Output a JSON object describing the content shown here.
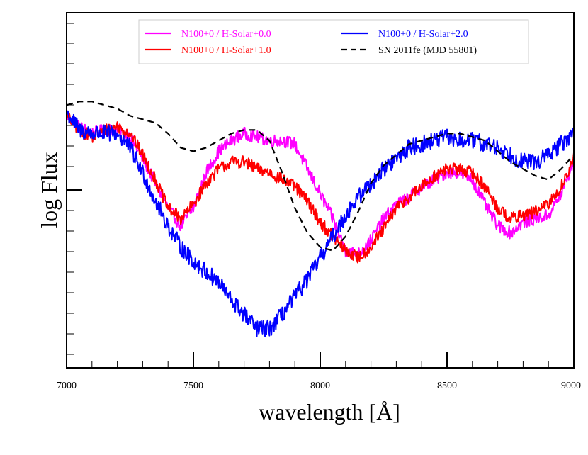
{
  "chart_data": {
    "type": "line",
    "xlabel": "wavelength [Å]",
    "ylabel": "log Flux",
    "xlim": [
      7000,
      9000
    ],
    "ylim": [
      0,
      1
    ],
    "x_ticks": [
      7000,
      7500,
      8000,
      8500,
      9000
    ],
    "x_tick_labels": [
      "7000",
      "7500",
      "8000",
      "8500",
      "9000"
    ],
    "grid": false,
    "legend_position": "top",
    "series": [
      {
        "name": "N100+0 / H-Solar+0.0",
        "color": "#ff00ff",
        "style": "solid",
        "noise": 0.008,
        "x": [
          7000,
          7050,
          7100,
          7150,
          7200,
          7250,
          7300,
          7350,
          7400,
          7450,
          7500,
          7550,
          7600,
          7650,
          7700,
          7750,
          7800,
          7850,
          7900,
          7950,
          8000,
          8050,
          8100,
          8150,
          8200,
          8250,
          8300,
          8350,
          8400,
          8450,
          8500,
          8550,
          8600,
          8650,
          8700,
          8750,
          8800,
          8850,
          8900,
          8950,
          9000
        ],
        "y": [
          0.71,
          0.68,
          0.66,
          0.67,
          0.67,
          0.65,
          0.59,
          0.52,
          0.45,
          0.4,
          0.45,
          0.55,
          0.61,
          0.64,
          0.66,
          0.65,
          0.64,
          0.64,
          0.63,
          0.56,
          0.49,
          0.42,
          0.33,
          0.32,
          0.36,
          0.42,
          0.46,
          0.48,
          0.51,
          0.53,
          0.55,
          0.55,
          0.53,
          0.46,
          0.4,
          0.38,
          0.41,
          0.42,
          0.43,
          0.49,
          0.58
        ]
      },
      {
        "name": "N100+0 / H-Solar+1.0",
        "color": "#ff0000",
        "style": "solid",
        "noise": 0.008,
        "x": [
          7000,
          7050,
          7100,
          7150,
          7200,
          7250,
          7300,
          7350,
          7400,
          7450,
          7500,
          7550,
          7600,
          7650,
          7700,
          7750,
          7800,
          7850,
          7900,
          7950,
          8000,
          8050,
          8100,
          8150,
          8200,
          8250,
          8300,
          8350,
          8400,
          8450,
          8500,
          8550,
          8600,
          8650,
          8700,
          8750,
          8800,
          8850,
          8900,
          8950,
          9000
        ],
        "y": [
          0.71,
          0.67,
          0.65,
          0.67,
          0.68,
          0.66,
          0.6,
          0.53,
          0.45,
          0.42,
          0.46,
          0.52,
          0.56,
          0.58,
          0.58,
          0.56,
          0.55,
          0.53,
          0.51,
          0.47,
          0.41,
          0.37,
          0.33,
          0.31,
          0.34,
          0.39,
          0.45,
          0.48,
          0.51,
          0.54,
          0.56,
          0.56,
          0.55,
          0.51,
          0.45,
          0.42,
          0.43,
          0.44,
          0.46,
          0.51,
          0.59
        ]
      },
      {
        "name": "N100+0 / H-Solar+2.0",
        "color": "#0000ff",
        "style": "solid",
        "noise": 0.011,
        "x": [
          7000,
          7050,
          7100,
          7150,
          7200,
          7250,
          7300,
          7350,
          7400,
          7450,
          7500,
          7550,
          7600,
          7650,
          7700,
          7750,
          7800,
          7850,
          7900,
          7950,
          8000,
          8050,
          8100,
          8150,
          8200,
          8250,
          8300,
          8350,
          8400,
          8450,
          8500,
          8550,
          8600,
          8650,
          8700,
          8750,
          8800,
          8850,
          8900,
          8950,
          9000
        ],
        "y": [
          0.72,
          0.67,
          0.66,
          0.66,
          0.66,
          0.62,
          0.55,
          0.47,
          0.4,
          0.34,
          0.3,
          0.27,
          0.24,
          0.19,
          0.15,
          0.11,
          0.11,
          0.15,
          0.2,
          0.25,
          0.31,
          0.37,
          0.43,
          0.48,
          0.52,
          0.56,
          0.59,
          0.62,
          0.63,
          0.64,
          0.65,
          0.64,
          0.64,
          0.63,
          0.62,
          0.6,
          0.58,
          0.58,
          0.6,
          0.63,
          0.66
        ]
      },
      {
        "name": "SN 2011fe (MJD 55801)",
        "color": "#000000",
        "style": "dashed",
        "noise": 0,
        "x": [
          7000,
          7050,
          7100,
          7150,
          7200,
          7250,
          7300,
          7350,
          7400,
          7450,
          7500,
          7550,
          7600,
          7650,
          7700,
          7750,
          7800,
          7850,
          7900,
          7950,
          8000,
          8050,
          8100,
          8150,
          8200,
          8250,
          8300,
          8350,
          8400,
          8450,
          8500,
          8550,
          8600,
          8650,
          8700,
          8750,
          8800,
          8850,
          8900,
          8950,
          9000
        ],
        "y": [
          0.74,
          0.75,
          0.75,
          0.74,
          0.73,
          0.71,
          0.7,
          0.69,
          0.66,
          0.62,
          0.61,
          0.62,
          0.64,
          0.66,
          0.67,
          0.67,
          0.64,
          0.55,
          0.45,
          0.38,
          0.34,
          0.33,
          0.37,
          0.44,
          0.52,
          0.57,
          0.6,
          0.63,
          0.64,
          0.65,
          0.66,
          0.66,
          0.65,
          0.64,
          0.61,
          0.58,
          0.56,
          0.54,
          0.53,
          0.56,
          0.6
        ]
      }
    ]
  }
}
